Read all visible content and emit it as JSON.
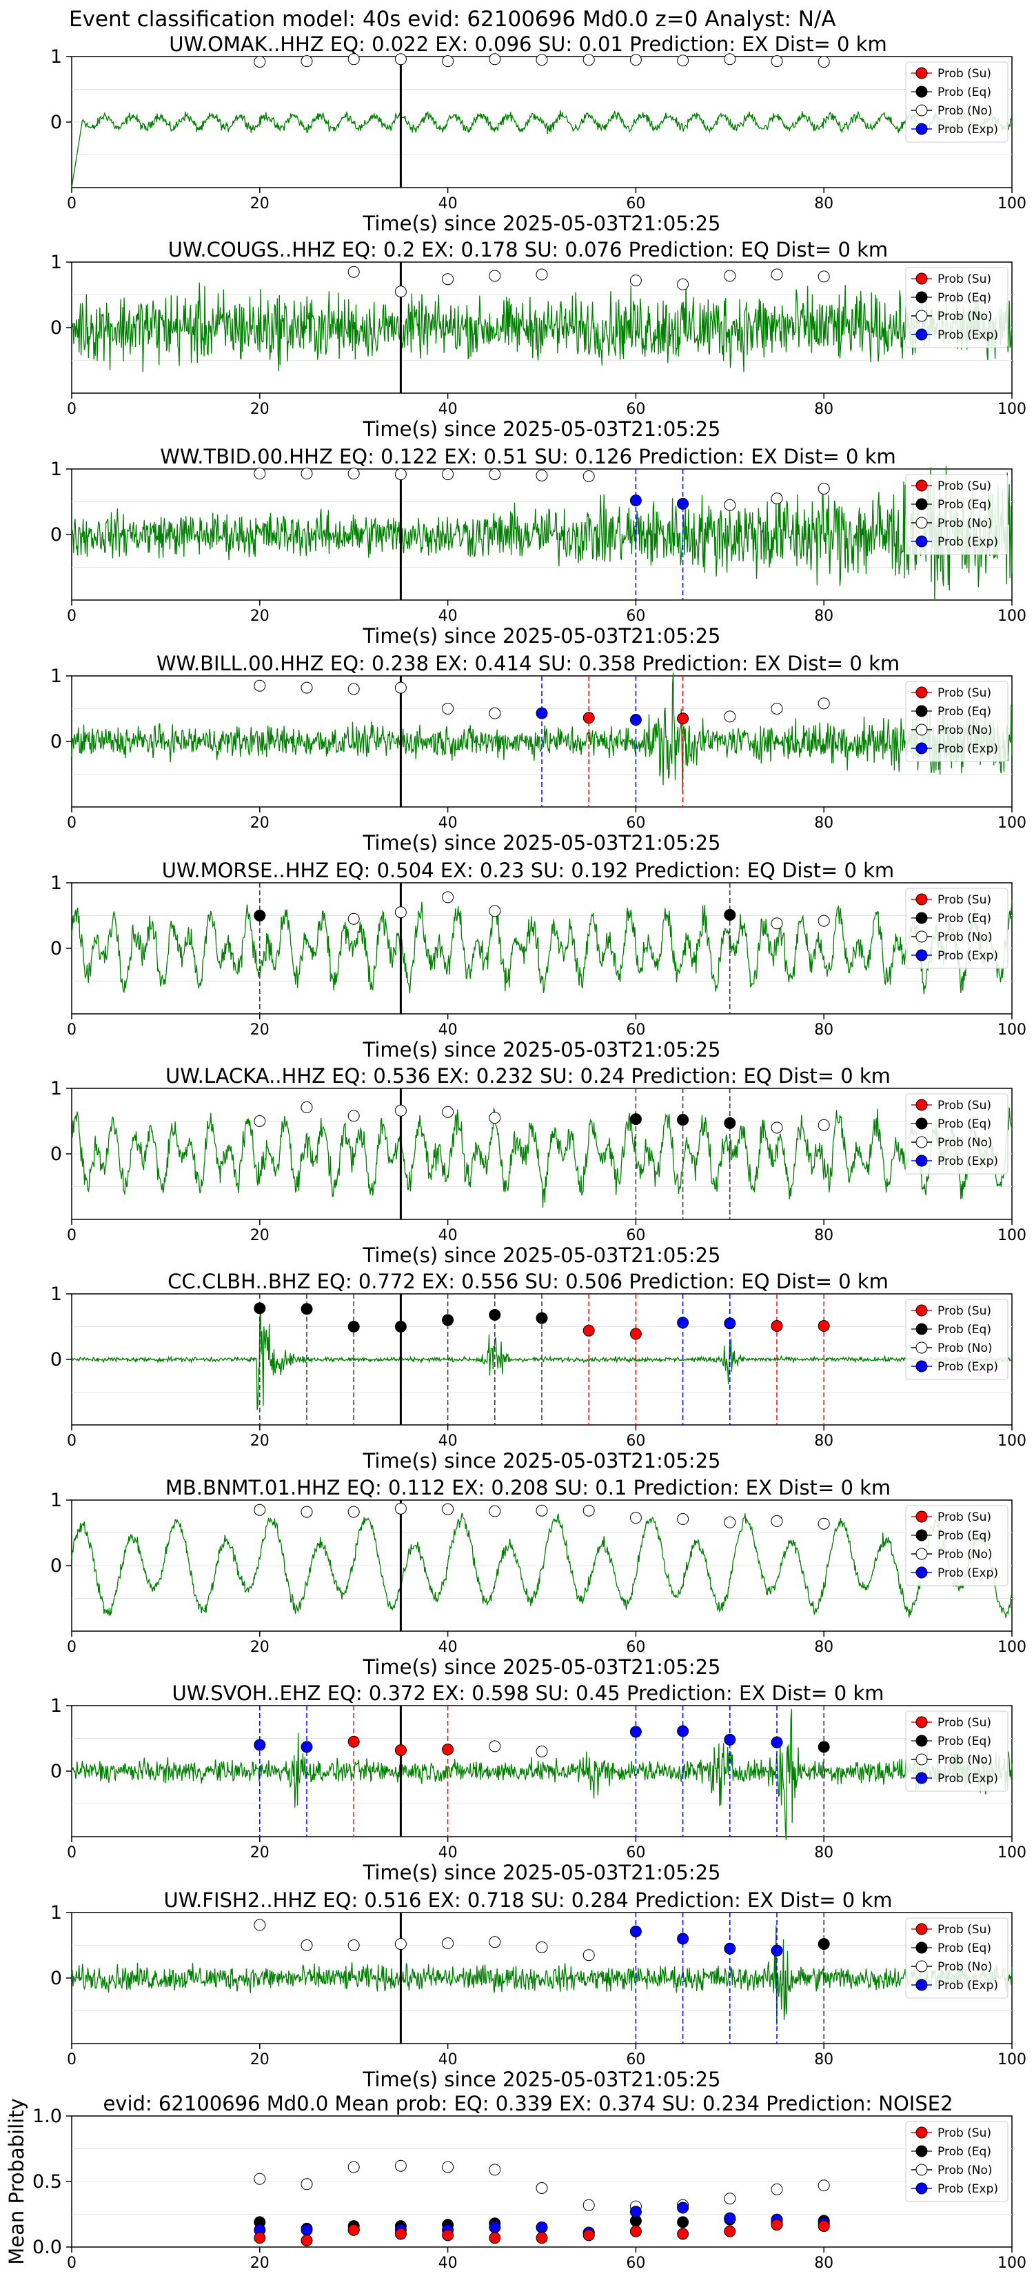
{
  "header": "Event classification model: 40s evid: 62100696 Md0.0 z=0 Analyst: N/A",
  "xlabel": "Time(s) since 2025-05-03T21:05:25",
  "mean_ylabel": "Mean Probability",
  "colors": {
    "trace": "#008000",
    "su": "#ff0000",
    "eq": "#000000",
    "no": "#ffffff",
    "exp": "#0000ff"
  },
  "legend": [
    "Prob (Su)",
    "Prob (Eq)",
    "Prob (No)",
    "Prob (Exp)"
  ],
  "chart_data": [
    {
      "type": "scatter",
      "title": "UW.OMAK..HHZ   EQ: 0.022  EX: 0.096  SU: 0.01   Prediction: EX    Dist= 0 km",
      "xlim": [
        0,
        100
      ],
      "ylim": [
        -1,
        1
      ],
      "yticks": [
        "0",
        "1"
      ],
      "xticks": [
        "0",
        "20",
        "40",
        "60",
        "80",
        "100"
      ],
      "origin_time": 35,
      "trace_style": "quiet",
      "probs": [
        {
          "t": 20,
          "cls": "no",
          "p": 0.92
        },
        {
          "t": 25,
          "cls": "no",
          "p": 0.93
        },
        {
          "t": 30,
          "cls": "no",
          "p": 0.96
        },
        {
          "t": 35,
          "cls": "no",
          "p": 0.96
        },
        {
          "t": 40,
          "cls": "no",
          "p": 0.93
        },
        {
          "t": 45,
          "cls": "no",
          "p": 0.96
        },
        {
          "t": 50,
          "cls": "no",
          "p": 0.95
        },
        {
          "t": 55,
          "cls": "no",
          "p": 0.95
        },
        {
          "t": 60,
          "cls": "no",
          "p": 0.95
        },
        {
          "t": 65,
          "cls": "no",
          "p": 0.94
        },
        {
          "t": 70,
          "cls": "no",
          "p": 0.96
        },
        {
          "t": 75,
          "cls": "no",
          "p": 0.93
        },
        {
          "t": 80,
          "cls": "no",
          "p": 0.92
        }
      ]
    },
    {
      "type": "scatter",
      "title": "UW.COUGS..HHZ   EQ: 0.2  EX: 0.178  SU: 0.076   Prediction: EQ    Dist= 0 km",
      "xlim": [
        0,
        100
      ],
      "ylim": [
        -1,
        1
      ],
      "yticks": [
        "0",
        "1"
      ],
      "xticks": [
        "0",
        "20",
        "40",
        "60",
        "80",
        "100"
      ],
      "origin_time": 35,
      "trace_style": "noisy",
      "probs": [
        {
          "t": 30,
          "cls": "no",
          "p": 0.85
        },
        {
          "t": 35,
          "cls": "no",
          "p": 0.55
        },
        {
          "t": 40,
          "cls": "no",
          "p": 0.74
        },
        {
          "t": 45,
          "cls": "no",
          "p": 0.79
        },
        {
          "t": 50,
          "cls": "no",
          "p": 0.81
        },
        {
          "t": 60,
          "cls": "no",
          "p": 0.72
        },
        {
          "t": 65,
          "cls": "no",
          "p": 0.66
        },
        {
          "t": 70,
          "cls": "no",
          "p": 0.79
        },
        {
          "t": 75,
          "cls": "no",
          "p": 0.81
        },
        {
          "t": 80,
          "cls": "no",
          "p": 0.78
        }
      ]
    },
    {
      "type": "scatter",
      "title": "WW.TBID.00.HHZ   EQ: 0.122  EX: 0.51  SU: 0.126   Prediction: EX    Dist= 0 km",
      "xlim": [
        0,
        100
      ],
      "ylim": [
        -1,
        1
      ],
      "yticks": [
        "0",
        "1"
      ],
      "xticks": [
        "0",
        "20",
        "40",
        "60",
        "80",
        "100"
      ],
      "origin_time": 35,
      "trace_style": "growing",
      "probs": [
        {
          "t": 20,
          "cls": "no",
          "p": 0.93
        },
        {
          "t": 25,
          "cls": "no",
          "p": 0.93
        },
        {
          "t": 30,
          "cls": "no",
          "p": 0.93
        },
        {
          "t": 35,
          "cls": "no",
          "p": 0.92
        },
        {
          "t": 40,
          "cls": "no",
          "p": 0.92
        },
        {
          "t": 45,
          "cls": "no",
          "p": 0.92
        },
        {
          "t": 50,
          "cls": "no",
          "p": 0.9
        },
        {
          "t": 55,
          "cls": "no",
          "p": 0.89
        },
        {
          "t": 60,
          "cls": "exp",
          "p": 0.52
        },
        {
          "t": 65,
          "cls": "exp",
          "p": 0.47
        },
        {
          "t": 70,
          "cls": "no",
          "p": 0.45
        },
        {
          "t": 75,
          "cls": "no",
          "p": 0.55
        },
        {
          "t": 80,
          "cls": "no",
          "p": 0.7
        }
      ]
    },
    {
      "type": "scatter",
      "title": "WW.BILL.00.HHZ   EQ: 0.238  EX: 0.414  SU: 0.358   Prediction: EX    Dist= 0 km",
      "xlim": [
        0,
        100
      ],
      "ylim": [
        -1,
        1
      ],
      "yticks": [
        "0",
        "1"
      ],
      "xticks": [
        "0",
        "20",
        "40",
        "60",
        "80",
        "100"
      ],
      "origin_time": 35,
      "trace_style": "burst",
      "probs": [
        {
          "t": 20,
          "cls": "no",
          "p": 0.85
        },
        {
          "t": 25,
          "cls": "no",
          "p": 0.82
        },
        {
          "t": 30,
          "cls": "no",
          "p": 0.8
        },
        {
          "t": 35,
          "cls": "no",
          "p": 0.82
        },
        {
          "t": 40,
          "cls": "no",
          "p": 0.5
        },
        {
          "t": 45,
          "cls": "no",
          "p": 0.43
        },
        {
          "t": 50,
          "cls": "exp",
          "p": 0.43
        },
        {
          "t": 55,
          "cls": "su",
          "p": 0.36
        },
        {
          "t": 60,
          "cls": "exp",
          "p": 0.33
        },
        {
          "t": 65,
          "cls": "su",
          "p": 0.35
        },
        {
          "t": 70,
          "cls": "no",
          "p": 0.38
        },
        {
          "t": 75,
          "cls": "no",
          "p": 0.5
        },
        {
          "t": 80,
          "cls": "no",
          "p": 0.58
        }
      ]
    },
    {
      "type": "scatter",
      "title": "UW.MORSE..HHZ   EQ: 0.504  EX: 0.23  SU: 0.192   Prediction: EQ    Dist= 0 km",
      "xlim": [
        0,
        100
      ],
      "ylim": [
        -1,
        1
      ],
      "yticks": [
        "0",
        "1"
      ],
      "xticks": [
        "0",
        "20",
        "40",
        "60",
        "80",
        "100"
      ],
      "origin_time": 35,
      "trace_style": "wavy",
      "probs": [
        {
          "t": 20,
          "cls": "eq",
          "p": 0.5
        },
        {
          "t": 30,
          "cls": "no",
          "p": 0.45
        },
        {
          "t": 35,
          "cls": "no",
          "p": 0.55
        },
        {
          "t": 40,
          "cls": "no",
          "p": 0.78
        },
        {
          "t": 45,
          "cls": "no",
          "p": 0.57
        },
        {
          "t": 70,
          "cls": "eq",
          "p": 0.51
        },
        {
          "t": 75,
          "cls": "no",
          "p": 0.38
        },
        {
          "t": 80,
          "cls": "no",
          "p": 0.42
        }
      ]
    },
    {
      "type": "scatter",
      "title": "UW.LACKA..HHZ   EQ: 0.536  EX: 0.232  SU: 0.24   Prediction: EQ    Dist= 0 km",
      "xlim": [
        0,
        100
      ],
      "ylim": [
        -1,
        1
      ],
      "yticks": [
        "0",
        "1"
      ],
      "xticks": [
        "0",
        "20",
        "40",
        "60",
        "80",
        "100"
      ],
      "origin_time": 35,
      "trace_style": "wavy",
      "probs": [
        {
          "t": 20,
          "cls": "no",
          "p": 0.5
        },
        {
          "t": 25,
          "cls": "no",
          "p": 0.71
        },
        {
          "t": 30,
          "cls": "no",
          "p": 0.58
        },
        {
          "t": 35,
          "cls": "no",
          "p": 0.66
        },
        {
          "t": 40,
          "cls": "no",
          "p": 0.64
        },
        {
          "t": 45,
          "cls": "no",
          "p": 0.55
        },
        {
          "t": 60,
          "cls": "eq",
          "p": 0.53
        },
        {
          "t": 65,
          "cls": "eq",
          "p": 0.52
        },
        {
          "t": 70,
          "cls": "eq",
          "p": 0.47
        },
        {
          "t": 75,
          "cls": "no",
          "p": 0.4
        },
        {
          "t": 80,
          "cls": "no",
          "p": 0.44
        }
      ]
    },
    {
      "type": "scatter",
      "title": "CC.CLBH..BHZ   EQ: 0.772  EX: 0.556  SU: 0.506   Prediction: EQ    Dist= 0 km",
      "xlim": [
        0,
        100
      ],
      "ylim": [
        -1,
        1
      ],
      "yticks": [
        "0",
        "1"
      ],
      "xticks": [
        "0",
        "20",
        "40",
        "60",
        "80",
        "100"
      ],
      "origin_time": 35,
      "trace_style": "quake",
      "probs": [
        {
          "t": 20,
          "cls": "eq",
          "p": 0.78
        },
        {
          "t": 25,
          "cls": "eq",
          "p": 0.77
        },
        {
          "t": 30,
          "cls": "eq",
          "p": 0.5
        },
        {
          "t": 35,
          "cls": "eq",
          "p": 0.5
        },
        {
          "t": 40,
          "cls": "eq",
          "p": 0.6
        },
        {
          "t": 45,
          "cls": "eq",
          "p": 0.68
        },
        {
          "t": 50,
          "cls": "eq",
          "p": 0.63
        },
        {
          "t": 55,
          "cls": "su",
          "p": 0.44
        },
        {
          "t": 60,
          "cls": "su",
          "p": 0.39
        },
        {
          "t": 65,
          "cls": "exp",
          "p": 0.56
        },
        {
          "t": 70,
          "cls": "exp",
          "p": 0.55
        },
        {
          "t": 75,
          "cls": "su",
          "p": 0.51
        },
        {
          "t": 80,
          "cls": "su",
          "p": 0.51
        }
      ]
    },
    {
      "type": "scatter",
      "title": "MB.BNMT.01.HHZ   EQ: 0.112  EX: 0.208  SU: 0.1   Prediction: EX    Dist= 0 km",
      "xlim": [
        0,
        100
      ],
      "ylim": [
        -1,
        1
      ],
      "yticks": [
        "0",
        "1"
      ],
      "xticks": [
        "0",
        "20",
        "40",
        "60",
        "80",
        "100"
      ],
      "origin_time": 35,
      "trace_style": "swell",
      "probs": [
        {
          "t": 20,
          "cls": "no",
          "p": 0.85
        },
        {
          "t": 25,
          "cls": "no",
          "p": 0.82
        },
        {
          "t": 30,
          "cls": "no",
          "p": 0.82
        },
        {
          "t": 35,
          "cls": "no",
          "p": 0.87
        },
        {
          "t": 40,
          "cls": "no",
          "p": 0.86
        },
        {
          "t": 45,
          "cls": "no",
          "p": 0.83
        },
        {
          "t": 50,
          "cls": "no",
          "p": 0.84
        },
        {
          "t": 55,
          "cls": "no",
          "p": 0.84
        },
        {
          "t": 60,
          "cls": "no",
          "p": 0.73
        },
        {
          "t": 65,
          "cls": "no",
          "p": 0.71
        },
        {
          "t": 70,
          "cls": "no",
          "p": 0.66
        },
        {
          "t": 75,
          "cls": "no",
          "p": 0.68
        },
        {
          "t": 80,
          "cls": "no",
          "p": 0.64
        }
      ]
    },
    {
      "type": "scatter",
      "title": "UW.SVOH..EHZ   EQ: 0.372  EX: 0.598  SU: 0.45   Prediction: EX    Dist= 0 km",
      "xlim": [
        0,
        100
      ],
      "ylim": [
        -1,
        1
      ],
      "yticks": [
        "0",
        "1"
      ],
      "xticks": [
        "0",
        "20",
        "40",
        "60",
        "80",
        "100"
      ],
      "origin_time": 35,
      "trace_style": "spiky",
      "probs": [
        {
          "t": 20,
          "cls": "exp",
          "p": 0.4
        },
        {
          "t": 25,
          "cls": "exp",
          "p": 0.37
        },
        {
          "t": 30,
          "cls": "su",
          "p": 0.45
        },
        {
          "t": 35,
          "cls": "su",
          "p": 0.32
        },
        {
          "t": 40,
          "cls": "su",
          "p": 0.33
        },
        {
          "t": 45,
          "cls": "no",
          "p": 0.38
        },
        {
          "t": 50,
          "cls": "no",
          "p": 0.3
        },
        {
          "t": 60,
          "cls": "exp",
          "p": 0.6
        },
        {
          "t": 65,
          "cls": "exp",
          "p": 0.61
        },
        {
          "t": 70,
          "cls": "exp",
          "p": 0.48
        },
        {
          "t": 75,
          "cls": "exp",
          "p": 0.44
        },
        {
          "t": 80,
          "cls": "eq",
          "p": 0.37
        }
      ]
    },
    {
      "type": "scatter",
      "title": "UW.FISH2..HHZ   EQ: 0.516  EX: 0.718  SU: 0.284   Prediction: EX    Dist= 0 km",
      "xlim": [
        0,
        100
      ],
      "ylim": [
        -1,
        1
      ],
      "yticks": [
        "0",
        "1"
      ],
      "xticks": [
        "0",
        "20",
        "40",
        "60",
        "80",
        "100"
      ],
      "origin_time": 35,
      "trace_style": "spiky2",
      "probs": [
        {
          "t": 20,
          "cls": "no",
          "p": 0.81
        },
        {
          "t": 25,
          "cls": "no",
          "p": 0.5
        },
        {
          "t": 30,
          "cls": "no",
          "p": 0.5
        },
        {
          "t": 35,
          "cls": "no",
          "p": 0.52
        },
        {
          "t": 40,
          "cls": "no",
          "p": 0.53
        },
        {
          "t": 45,
          "cls": "no",
          "p": 0.55
        },
        {
          "t": 50,
          "cls": "no",
          "p": 0.47
        },
        {
          "t": 55,
          "cls": "no",
          "p": 0.35
        },
        {
          "t": 60,
          "cls": "exp",
          "p": 0.71
        },
        {
          "t": 65,
          "cls": "exp",
          "p": 0.6
        },
        {
          "t": 70,
          "cls": "exp",
          "p": 0.45
        },
        {
          "t": 75,
          "cls": "exp",
          "p": 0.42
        },
        {
          "t": 80,
          "cls": "eq",
          "p": 0.52
        }
      ]
    },
    {
      "type": "scatter",
      "title": "evid: 62100696  Md0.0   Mean prob:   EQ: 0.339  EX: 0.374  SU: 0.234   Prediction: NOISE2",
      "xlim": [
        0,
        100
      ],
      "ylim": [
        0,
        1
      ],
      "yticks": [
        "0.0",
        "0.5",
        "1.0"
      ],
      "xticks": [
        "0",
        "20",
        "40",
        "60",
        "80",
        "100"
      ],
      "ylabel": "Mean Probability",
      "series": [
        {
          "name": "Prob (No)",
          "cls": "no",
          "x": [
            20,
            25,
            30,
            35,
            40,
            45,
            50,
            55,
            60,
            65,
            70,
            75,
            80
          ],
          "y": [
            0.52,
            0.48,
            0.61,
            0.62,
            0.61,
            0.59,
            0.45,
            0.32,
            0.31,
            0.32,
            0.37,
            0.44,
            0.47
          ]
        },
        {
          "name": "Prob (Eq)",
          "cls": "eq",
          "x": [
            20,
            25,
            30,
            35,
            40,
            45,
            50,
            55,
            60,
            65,
            70,
            75,
            80
          ],
          "y": [
            0.19,
            0.14,
            0.16,
            0.16,
            0.17,
            0.18,
            0.15,
            0.11,
            0.2,
            0.19,
            0.21,
            0.19,
            0.2
          ]
        },
        {
          "name": "Prob (Exp)",
          "cls": "exp",
          "x": [
            20,
            25,
            30,
            35,
            40,
            45,
            50,
            55,
            60,
            65,
            70,
            75,
            80
          ],
          "y": [
            0.13,
            0.13,
            0.13,
            0.13,
            0.13,
            0.15,
            0.15,
            0.11,
            0.27,
            0.3,
            0.22,
            0.21,
            0.18
          ]
        },
        {
          "name": "Prob (Su)",
          "cls": "su",
          "x": [
            20,
            25,
            30,
            35,
            40,
            45,
            50,
            55,
            60,
            65,
            70,
            75,
            80
          ],
          "y": [
            0.07,
            0.05,
            0.13,
            0.1,
            0.09,
            0.07,
            0.07,
            0.09,
            0.12,
            0.1,
            0.12,
            0.17,
            0.16
          ]
        }
      ]
    }
  ]
}
